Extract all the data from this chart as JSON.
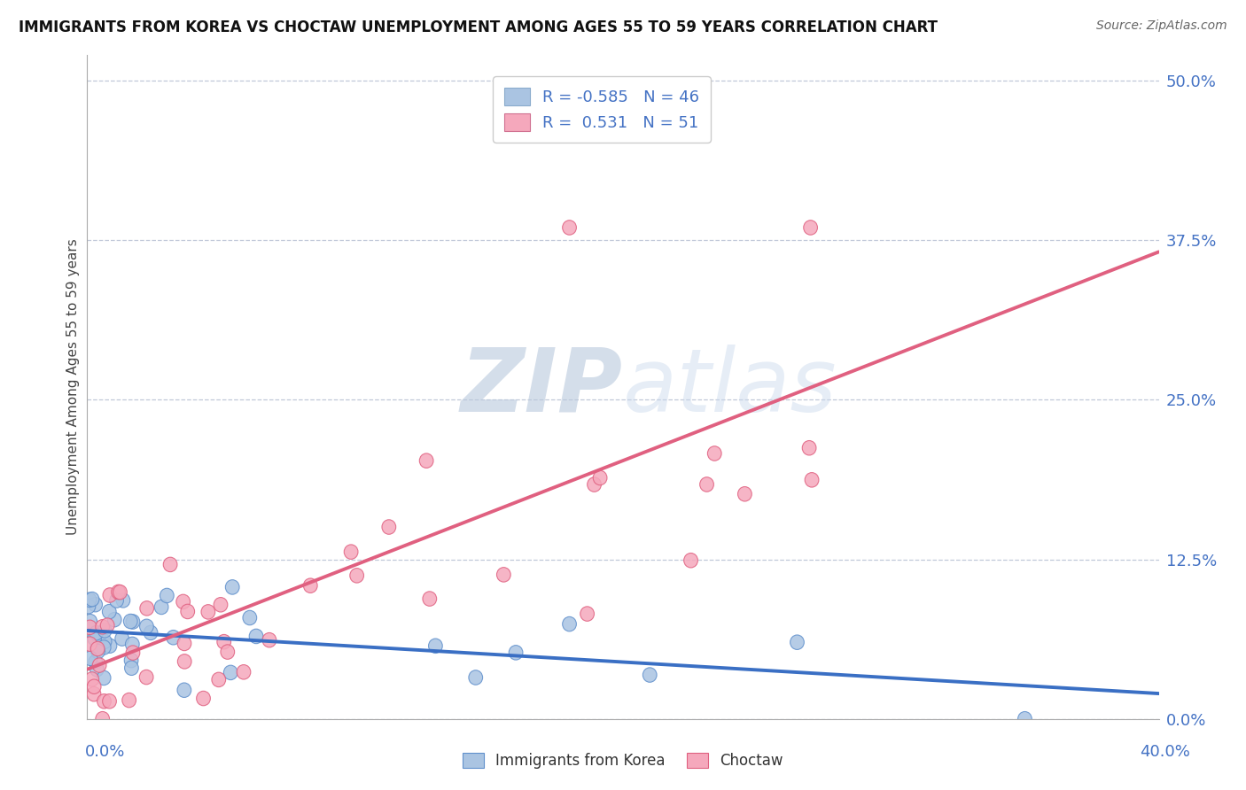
{
  "title": "IMMIGRANTS FROM KOREA VS CHOCTAW UNEMPLOYMENT AMONG AGES 55 TO 59 YEARS CORRELATION CHART",
  "source": "Source: ZipAtlas.com",
  "ylabel": "Unemployment Among Ages 55 to 59 years",
  "ytick_labels": [
    "0.0%",
    "12.5%",
    "25.0%",
    "37.5%",
    "50.0%"
  ],
  "ytick_values": [
    0.0,
    0.125,
    0.25,
    0.375,
    0.5
  ],
  "xlim": [
    0.0,
    0.4
  ],
  "ylim": [
    0.0,
    0.52
  ],
  "legend_entries": [
    {
      "label": "R = -0.585   N = 46",
      "color": "#aac4e2"
    },
    {
      "label": "R =  0.531   N = 51",
      "color": "#f5a8bc"
    }
  ],
  "blue_line_color": "#3a6fc4",
  "pink_line_color": "#e06080",
  "scatter_blue_face": "#aac4e2",
  "scatter_blue_edge": "#6090cc",
  "scatter_pink_face": "#f5a8bc",
  "scatter_pink_edge": "#e06080",
  "axis_label_color": "#4472c4",
  "grid_color": "#c0c8d8",
  "title_fontsize": 12,
  "source_fontsize": 10,
  "tick_label_fontsize": 13,
  "ylabel_fontsize": 11
}
